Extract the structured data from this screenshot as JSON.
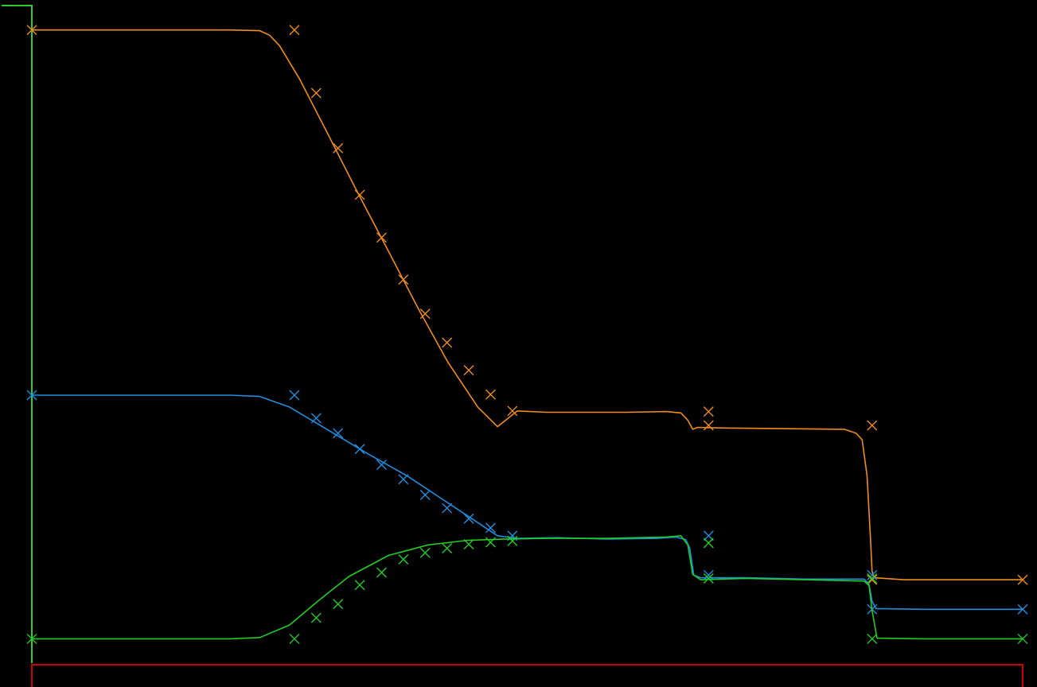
{
  "chart_data": {
    "type": "line",
    "title": "",
    "xlabel": "",
    "ylabel": "",
    "grid": false,
    "legend": "none",
    "xlim": [
      0,
      1000
    ],
    "ylim": [
      0,
      1000
    ],
    "axis_colors": {
      "x": "#cc0000",
      "y": "#2ecc2e"
    },
    "series": [
      {
        "color": "#f08c1c",
        "line": [
          [
            0,
            964
          ],
          [
            200,
            964
          ],
          [
            230,
            963
          ],
          [
            240,
            956
          ],
          [
            250,
            940
          ],
          [
            270,
            890
          ],
          [
            300,
            802
          ],
          [
            330,
            713
          ],
          [
            360,
            627
          ],
          [
            390,
            540
          ],
          [
            420,
            458
          ],
          [
            450,
            390
          ],
          [
            470,
            360
          ],
          [
            490,
            384
          ],
          [
            520,
            382
          ],
          [
            560,
            382
          ],
          [
            600,
            382
          ],
          [
            640,
            383
          ],
          [
            655,
            381
          ],
          [
            662,
            370
          ],
          [
            667,
            356
          ],
          [
            672,
            359
          ],
          [
            700,
            358
          ],
          [
            760,
            357
          ],
          [
            820,
            356
          ],
          [
            832,
            350
          ],
          [
            838,
            340
          ],
          [
            843,
            285
          ],
          [
            846,
            200
          ],
          [
            848,
            140
          ],
          [
            850,
            130
          ],
          [
            880,
            127
          ],
          [
            940,
            127
          ],
          [
            1000,
            127
          ]
        ],
        "markers": [
          [
            0,
            964
          ],
          [
            265,
            964
          ],
          [
            287,
            868
          ],
          [
            309,
            784
          ],
          [
            331,
            713
          ],
          [
            353,
            648
          ],
          [
            375,
            584
          ],
          [
            397,
            532
          ],
          [
            419,
            488
          ],
          [
            441,
            446
          ],
          [
            463,
            409
          ],
          [
            485,
            384
          ],
          [
            683,
            383
          ],
          [
            683,
            362
          ],
          [
            848,
            362
          ],
          [
            848,
            127
          ],
          [
            1000,
            127
          ]
        ]
      },
      {
        "color": "#1f8ee0",
        "line": [
          [
            0,
            408
          ],
          [
            200,
            408
          ],
          [
            230,
            406
          ],
          [
            260,
            390
          ],
          [
            300,
            354
          ],
          [
            340,
            318
          ],
          [
            380,
            284
          ],
          [
            420,
            244
          ],
          [
            450,
            214
          ],
          [
            470,
            194
          ],
          [
            490,
            190
          ],
          [
            530,
            191
          ],
          [
            580,
            189
          ],
          [
            630,
            190
          ],
          [
            650,
            192
          ],
          [
            660,
            188
          ],
          [
            664,
            175
          ],
          [
            668,
            134
          ],
          [
            675,
            130
          ],
          [
            720,
            130
          ],
          [
            780,
            128
          ],
          [
            840,
            128
          ],
          [
            845,
            120
          ],
          [
            848,
            94
          ],
          [
            852,
            83
          ],
          [
            900,
            82
          ],
          [
            1000,
            82
          ]
        ],
        "markers": [
          [
            0,
            408
          ],
          [
            265,
            408
          ],
          [
            287,
            373
          ],
          [
            309,
            350
          ],
          [
            331,
            326
          ],
          [
            353,
            302
          ],
          [
            375,
            280
          ],
          [
            397,
            256
          ],
          [
            419,
            236
          ],
          [
            441,
            220
          ],
          [
            463,
            206
          ],
          [
            485,
            194
          ],
          [
            683,
            194
          ],
          [
            683,
            134
          ],
          [
            848,
            134
          ],
          [
            848,
            82
          ],
          [
            1000,
            82
          ]
        ]
      },
      {
        "color": "#22cc22",
        "line": [
          [
            0,
            37
          ],
          [
            200,
            37
          ],
          [
            230,
            39
          ],
          [
            260,
            58
          ],
          [
            290,
            96
          ],
          [
            320,
            132
          ],
          [
            360,
            164
          ],
          [
            400,
            180
          ],
          [
            440,
            187
          ],
          [
            480,
            189
          ],
          [
            520,
            190
          ],
          [
            580,
            190
          ],
          [
            640,
            192
          ],
          [
            655,
            194
          ],
          [
            662,
            180
          ],
          [
            667,
            135
          ],
          [
            675,
            127
          ],
          [
            720,
            129
          ],
          [
            780,
            127
          ],
          [
            840,
            125
          ],
          [
            845,
            118
          ],
          [
            848,
            80
          ],
          [
            853,
            38
          ],
          [
            900,
            37
          ],
          [
            1000,
            37
          ]
        ],
        "markers": [
          [
            0,
            37
          ],
          [
            265,
            37
          ],
          [
            287,
            69
          ],
          [
            309,
            90
          ],
          [
            331,
            119
          ],
          [
            353,
            138
          ],
          [
            375,
            158
          ],
          [
            397,
            168
          ],
          [
            419,
            175
          ],
          [
            441,
            181
          ],
          [
            463,
            184
          ],
          [
            485,
            186
          ],
          [
            683,
            183
          ],
          [
            683,
            129
          ],
          [
            848,
            129
          ],
          [
            848,
            37
          ],
          [
            1000,
            37
          ]
        ]
      }
    ]
  }
}
